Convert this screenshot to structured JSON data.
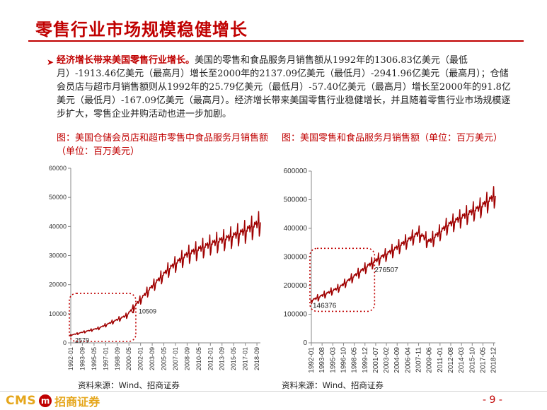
{
  "title": "零售行业市场规模稳健增长",
  "bullet": {
    "lead": "经济增长带来美国零售行业增长。",
    "text": "美国的零售和食品服务月销售额从1992年的1306.83亿美元（最低月）-1913.46亿美元（最高月）增长至2000年的2137.09亿美元（最低月）-2941.96亿美元（最高月）；仓储会员店与超市月销售额则从1992年的25.79亿美元（最低月）-57.40亿美元（最高月）增长至2000年的91.8亿美元（最低月）-167.09亿美元（最高月）。经济增长带来美国零售行业稳健增长，并且随着零售行业市场规模逐步扩大，零售企业并购活动也进一步加剧。"
  },
  "captions": {
    "left": "图：美国仓储会员店和超市零售中食品服务月销售额（单位：百万美元）",
    "right": "图：美国零售和食品服务月销售额（单位：百万美元）"
  },
  "sources": {
    "left": "资料来源：Wind、招商证券",
    "right": "资料来源：Wind、招商证券"
  },
  "footer": {
    "logo_text": "CMS",
    "logo_mark": "m",
    "logo_cn": "招商证券",
    "page": "- 9 -"
  },
  "colors": {
    "accent": "#c00000",
    "line": "#a00000",
    "gold": "#e5a61b"
  },
  "chart_data": [
    {
      "type": "line",
      "ylim": [
        0,
        60000
      ],
      "yticks": [
        0,
        10000,
        20000,
        30000,
        40000,
        50000,
        60000
      ],
      "ytick_labels": [
        "0",
        "10000",
        "20000",
        "30000",
        "40000",
        "50000",
        "60000"
      ],
      "xtick_labels": [
        "1992-01",
        "1993-09",
        "1995-05",
        "1997-01",
        "1998-09",
        "2000-05",
        "2002-01",
        "2003-09",
        "2005-05",
        "2007-01",
        "2008-09",
        "2010-05",
        "2012-01",
        "2013-09",
        "2015-05",
        "2017-01",
        "2018-09"
      ],
      "x_range": [
        "1992-01",
        "2019-03"
      ],
      "trend": [
        [
          "1992-01",
          2579
        ],
        [
          "1996-01",
          5000
        ],
        [
          "2000-01",
          9300
        ],
        [
          "2003-01",
          17500
        ],
        [
          "2006-01",
          25000
        ],
        [
          "2008-09",
          30000
        ],
        [
          "2012-01",
          33500
        ],
        [
          "2015-01",
          36000
        ],
        [
          "2017-01",
          38000
        ],
        [
          "2019-03",
          41000
        ]
      ],
      "annotations": [
        {
          "date": "1992-01",
          "value": 2579,
          "label": "2579"
        },
        {
          "date": "2000-12",
          "value": 10509,
          "label": "10509"
        }
      ],
      "highlight": {
        "from": "1992-01",
        "to": "2000-12",
        "ymin": 0,
        "ymax": 17000,
        "style": "dotted",
        "color": "#c00000"
      }
    },
    {
      "type": "line",
      "ylim": [
        0,
        600000
      ],
      "yticks": [
        0,
        100000,
        200000,
        300000,
        400000,
        500000,
        600000
      ],
      "ytick_labels": [
        "0",
        "100000",
        "200000",
        "300000",
        "400000",
        "500000",
        "600000"
      ],
      "xtick_labels": [
        "1992-01",
        "1993-08",
        "1995-03",
        "1996-10",
        "1998-05",
        "1999-12",
        "2001-07",
        "2003-02",
        "2004-09",
        "2006-04",
        "2007-11",
        "2009-06",
        "2011-01",
        "2012-08",
        "2014-03",
        "2015-10",
        "2017-05",
        "2018-12"
      ],
      "x_range": [
        "1992-01",
        "2019-03"
      ],
      "trend": [
        [
          "1992-01",
          146376
        ],
        [
          "1996-01",
          190000
        ],
        [
          "2000-12",
          276507
        ],
        [
          "2004-01",
          320000
        ],
        [
          "2007-11",
          380000
        ],
        [
          "2009-06",
          350000
        ],
        [
          "2012-01",
          405000
        ],
        [
          "2015-01",
          445000
        ],
        [
          "2017-01",
          470000
        ],
        [
          "2019-03",
          510000
        ]
      ],
      "annotations": [
        {
          "date": "1992-01",
          "value": 146376,
          "label": "146376"
        },
        {
          "date": "2000-12",
          "value": 276507,
          "label": "276507"
        }
      ],
      "highlight": {
        "from": "1992-01",
        "to": "2000-12",
        "ymin": 110000,
        "ymax": 330000,
        "style": "dotted",
        "color": "#c00000"
      }
    }
  ]
}
